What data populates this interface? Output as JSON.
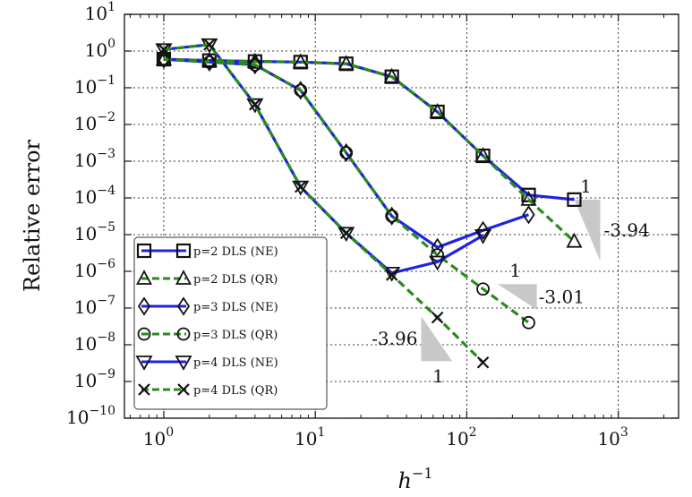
{
  "chart_data": {
    "type": "line",
    "xlabel": "h",
    "xlabel_sup": "−1",
    "ylabel": "Relative error",
    "x_scale": "log",
    "y_scale": "log",
    "xlim": [
      0.55,
      2500
    ],
    "ylim": [
      1e-10,
      10
    ],
    "grid": true,
    "legend_position": "lower-left",
    "x_ticks": [
      {
        "base": "10",
        "exp": "0",
        "value": 1
      },
      {
        "base": "10",
        "exp": "1",
        "value": 10
      },
      {
        "base": "10",
        "exp": "2",
        "value": 100
      },
      {
        "base": "10",
        "exp": "3",
        "value": 1000
      }
    ],
    "y_ticks": [
      {
        "base": "10",
        "exp": "1",
        "value": 10
      },
      {
        "base": "10",
        "exp": "0",
        "value": 1
      },
      {
        "base": "10",
        "exp": "−1",
        "value": 0.1
      },
      {
        "base": "10",
        "exp": "−2",
        "value": 0.01
      },
      {
        "base": "10",
        "exp": "−3",
        "value": 0.001
      },
      {
        "base": "10",
        "exp": "−4",
        "value": 0.0001
      },
      {
        "base": "10",
        "exp": "−5",
        "value": 1e-05
      },
      {
        "base": "10",
        "exp": "−6",
        "value": 1e-06
      },
      {
        "base": "10",
        "exp": "−7",
        "value": 1e-07
      },
      {
        "base": "10",
        "exp": "−8",
        "value": 1e-08
      },
      {
        "base": "10",
        "exp": "−9",
        "value": 1e-09
      },
      {
        "base": "10",
        "exp": "−10",
        "value": 1e-10
      }
    ],
    "series": [
      {
        "name": "p=2 DLS (NE)",
        "color": "#1f22e6",
        "line": "solid",
        "marker": "square",
        "x": [
          1,
          2,
          4,
          8,
          16,
          32,
          64,
          128,
          256,
          512
        ],
        "y": [
          0.6,
          0.55,
          0.52,
          0.5,
          0.45,
          0.2,
          0.022,
          0.0014,
          0.00012,
          9e-05
        ]
      },
      {
        "name": "p=2 DLS (QR)",
        "color": "#2a8a1e",
        "line": "dashed",
        "marker": "triangle-up",
        "x": [
          1,
          2,
          4,
          8,
          16,
          32,
          64,
          128,
          256,
          512
        ],
        "y": [
          0.6,
          0.55,
          0.52,
          0.5,
          0.45,
          0.2,
          0.022,
          0.0014,
          9e-05,
          6.5e-06
        ]
      },
      {
        "name": "p=3 DLS (NE)",
        "color": "#1f22e6",
        "line": "solid",
        "marker": "diamond",
        "x": [
          1,
          2,
          4,
          8,
          16,
          32,
          64,
          128,
          256
        ],
        "y": [
          0.6,
          0.5,
          0.42,
          0.085,
          0.0017,
          3.2e-05,
          4.5e-06,
          1.3e-05,
          3.5e-05
        ]
      },
      {
        "name": "p=3 DLS (QR)",
        "color": "#2a8a1e",
        "line": "dashed",
        "marker": "circle",
        "x": [
          1,
          2,
          4,
          8,
          16,
          32,
          64,
          128,
          256
        ],
        "y": [
          0.6,
          0.5,
          0.42,
          0.085,
          0.0017,
          3.2e-05,
          2.8e-06,
          3.3e-07,
          4e-08
        ]
      },
      {
        "name": "p=4 DLS (NE)",
        "color": "#1f22e6",
        "line": "solid",
        "marker": "triangle-down",
        "x": [
          1,
          2,
          4,
          8,
          16,
          32,
          64,
          128
        ],
        "y": [
          1.1,
          1.5,
          0.035,
          0.0002,
          1.1e-05,
          9e-07,
          1.8e-06,
          9.5e-06
        ]
      },
      {
        "name": "p=4 DLS (QR)",
        "color": "#2a8a1e",
        "line": "dashed",
        "marker": "x",
        "x": [
          1,
          2,
          4,
          8,
          16,
          32,
          64,
          128
        ],
        "y": [
          1.1,
          1.5,
          0.035,
          0.0002,
          1.1e-05,
          8e-07,
          5.5e-08,
          3.3e-09
        ]
      }
    ],
    "slope_triangles": [
      {
        "slope_label": "-3.94",
        "run_label": "1",
        "x_from": 512,
        "x_to": 760,
        "y_top": 9e-05,
        "y_bottom": 1.9e-06
      },
      {
        "slope_label": "-3.01",
        "run_label": "1",
        "x_from": 160,
        "x_to": 290,
        "y_top": 4.5e-07,
        "y_bottom": 9e-08
      },
      {
        "slope_label": "-3.96",
        "run_label": "1",
        "x_from": 50,
        "x_to": 80,
        "y_top": 6e-08,
        "y_bottom": 3.6e-09
      }
    ]
  }
}
